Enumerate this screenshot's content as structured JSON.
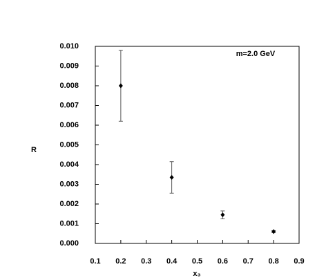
{
  "chart_data": {
    "type": "scatter",
    "annotation": "m=2.0  GeV",
    "xlabel": "x₃",
    "ylabel": "R",
    "x": [
      0.2,
      0.4,
      0.6,
      0.8
    ],
    "values": [
      0.008,
      0.00335,
      0.00145,
      0.0006
    ],
    "errors": [
      0.0018,
      0.0008,
      0.0002,
      5e-05
    ],
    "color": "#000000",
    "xlim": [
      0.1,
      0.9
    ],
    "xticks": [
      0.1,
      0.2,
      0.3,
      0.4,
      0.5,
      0.6,
      0.7,
      0.8,
      0.9
    ],
    "ylim": [
      0,
      0.01
    ],
    "yticks": [
      {
        "value": 0,
        "label": "0.000"
      },
      {
        "value": 0.001,
        "label": "0.001"
      },
      {
        "value": 0.002,
        "label": "0.002"
      },
      {
        "value": 0.003,
        "label": "0.003"
      },
      {
        "value": 0.004,
        "label": "0.004"
      },
      {
        "value": 0.005,
        "label": "0.005"
      },
      {
        "value": 0.006,
        "label": "0.006"
      },
      {
        "value": 0.007,
        "label": "0.007"
      },
      {
        "value": 0.008,
        "label": "0.008"
      },
      {
        "value": 0.009,
        "label": "0.009"
      },
      {
        "value": 0.01,
        "label": "0.010"
      }
    ]
  }
}
